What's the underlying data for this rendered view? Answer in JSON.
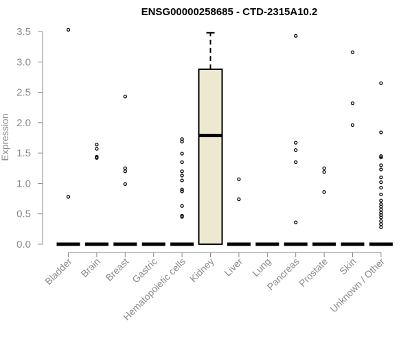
{
  "chart_data": {
    "type": "box",
    "title": "ENSG00000258685 - CTD-2315A10.2",
    "ylabel": "Expression",
    "xlabel": "",
    "ylim": [
      0,
      3.5
    ],
    "yticks": [
      "0.0",
      "0.5",
      "1.0",
      "1.5",
      "2.0",
      "2.5",
      "3.0",
      "3.5"
    ],
    "grid": false,
    "box_fill": "#ede8d0",
    "categories": [
      "Bladder",
      "Brain",
      "Breast",
      "Gastric",
      "Hematopoietic cells",
      "Kidney",
      "Liver",
      "Lung",
      "Pancreas",
      "Prostate",
      "Skin",
      "Unknown / Other"
    ],
    "boxes": [
      {
        "category": "Bladder",
        "min": 0,
        "q1": 0,
        "median": 0,
        "q3": 0,
        "max": 0,
        "outliers": [
          3.53,
          0.78
        ]
      },
      {
        "category": "Brain",
        "min": 0,
        "q1": 0,
        "median": 0,
        "q3": 0,
        "max": 0,
        "outliers": [
          1.64,
          1.57,
          1.44,
          1.42
        ]
      },
      {
        "category": "Breast",
        "min": 0,
        "q1": 0,
        "median": 0,
        "q3": 0,
        "max": 0,
        "outliers": [
          2.43,
          1.25,
          1.2,
          0.99
        ]
      },
      {
        "category": "Gastric",
        "min": 0,
        "q1": 0,
        "median": 0,
        "q3": 0,
        "max": 0,
        "outliers": []
      },
      {
        "category": "Hematopoietic cells",
        "min": 0,
        "q1": 0,
        "median": 0,
        "q3": 0,
        "max": 0,
        "outliers": [
          1.73,
          1.69,
          1.49,
          1.35,
          1.2,
          1.13,
          1.05,
          0.9,
          0.87,
          0.63,
          0.47,
          0.45
        ]
      },
      {
        "category": "Kidney",
        "min": 0,
        "q1": 0,
        "median": 1.79,
        "q3": 2.88,
        "max": 3.48,
        "outliers": []
      },
      {
        "category": "Liver",
        "min": 0,
        "q1": 0,
        "median": 0,
        "q3": 0,
        "max": 0,
        "outliers": [
          1.07,
          0.74
        ]
      },
      {
        "category": "Lung",
        "min": 0,
        "q1": 0,
        "median": 0,
        "q3": 0,
        "max": 0,
        "outliers": []
      },
      {
        "category": "Pancreas",
        "min": 0,
        "q1": 0,
        "median": 0,
        "q3": 0,
        "max": 0,
        "outliers": [
          3.43,
          1.67,
          1.55,
          1.35,
          0.36
        ]
      },
      {
        "category": "Prostate",
        "min": 0,
        "q1": 0,
        "median": 0,
        "q3": 0,
        "max": 0,
        "outliers": [
          1.25,
          1.19,
          0.86
        ]
      },
      {
        "category": "Skin",
        "min": 0,
        "q1": 0,
        "median": 0,
        "q3": 0,
        "max": 0,
        "outliers": [
          3.16,
          2.32,
          1.96
        ]
      },
      {
        "category": "Unknown / Other",
        "min": 0,
        "q1": 0,
        "median": 0,
        "q3": 0,
        "max": 0,
        "outliers": [
          2.65,
          1.84,
          1.45,
          1.43,
          1.3,
          1.23,
          1.1,
          1.02,
          0.93,
          0.82,
          0.72,
          0.66,
          0.62,
          0.57,
          0.52,
          0.48,
          0.44,
          0.38,
          0.33,
          0.28
        ]
      }
    ]
  }
}
